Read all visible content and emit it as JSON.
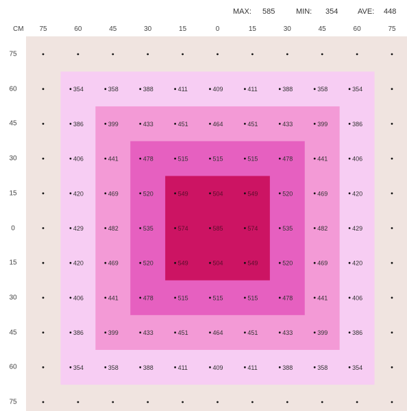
{
  "stats": {
    "max_label": "MAX:",
    "max_value": "585",
    "min_label": "MIN:",
    "min_value": "354",
    "ave_label": "AVE:",
    "ave_value": "448"
  },
  "unit_label": "CM",
  "colors": {
    "background": "#f0e4e0",
    "band1": "#f7cdf3",
    "band2": "#f39ad6",
    "band3": "#e660c0",
    "band4": "#cc1463"
  },
  "chart_data": {
    "type": "heatmap",
    "x_ticks": [
      "75",
      "60",
      "45",
      "30",
      "15",
      "0",
      "15",
      "30",
      "45",
      "60",
      "75"
    ],
    "y_ticks": [
      "75",
      "60",
      "45",
      "30",
      "15",
      "0",
      "15",
      "30",
      "45",
      "60",
      "75"
    ],
    "values": [
      [
        null,
        null,
        null,
        null,
        null,
        null,
        null,
        null,
        null,
        null,
        null
      ],
      [
        null,
        354,
        358,
        388,
        411,
        409,
        411,
        388,
        358,
        354,
        null
      ],
      [
        null,
        386,
        399,
        433,
        451,
        464,
        451,
        433,
        399,
        386,
        null
      ],
      [
        null,
        406,
        441,
        478,
        515,
        515,
        515,
        478,
        441,
        406,
        null
      ],
      [
        null,
        420,
        469,
        520,
        549,
        504,
        549,
        520,
        469,
        420,
        null
      ],
      [
        null,
        429,
        482,
        535,
        574,
        585,
        574,
        535,
        482,
        429,
        null
      ],
      [
        null,
        420,
        469,
        520,
        549,
        504,
        549,
        520,
        469,
        420,
        null
      ],
      [
        null,
        406,
        441,
        478,
        515,
        515,
        515,
        478,
        441,
        406,
        null
      ],
      [
        null,
        386,
        399,
        433,
        451,
        464,
        451,
        433,
        399,
        386,
        null
      ],
      [
        null,
        354,
        358,
        388,
        411,
        409,
        411,
        388,
        358,
        354,
        null
      ],
      [
        null,
        null,
        null,
        null,
        null,
        null,
        null,
        null,
        null,
        null,
        null
      ]
    ]
  }
}
